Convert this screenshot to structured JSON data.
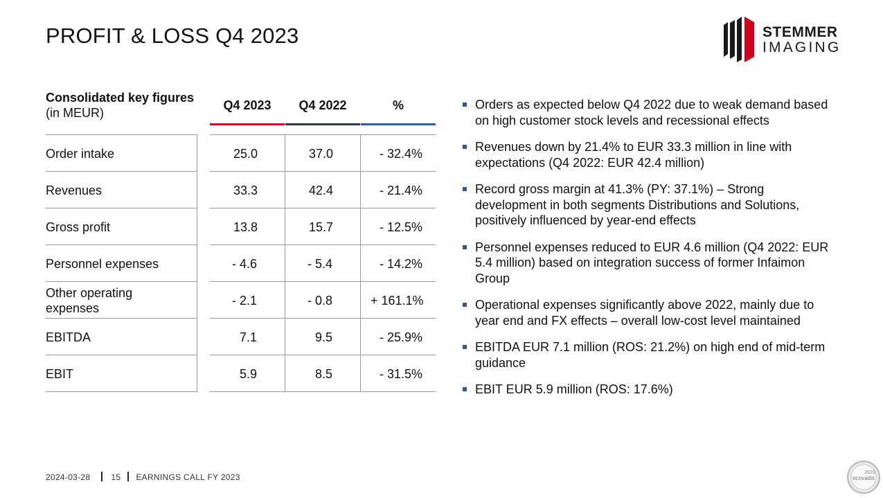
{
  "title": "PROFIT & LOSS Q4 2023",
  "logo": {
    "line1": "STEMMER",
    "line2": "IMAGING"
  },
  "table": {
    "header_title": "Consolidated key figures",
    "header_unit": "(in MEUR)",
    "columns": [
      "Q4 2023",
      "Q4 2022",
      "%"
    ],
    "rows": [
      {
        "label": "Order intake",
        "q4_2023": "25.0",
        "q4_2022": "37.0",
        "pct": "- 32.4%"
      },
      {
        "label": "Revenues",
        "q4_2023": "33.3",
        "q4_2022": "42.4",
        "pct": "- 21.4%"
      },
      {
        "label": "Gross profit",
        "q4_2023": "13.8",
        "q4_2022": "15.7",
        "pct": "- 12.5%"
      },
      {
        "label": "Personnel expenses",
        "q4_2023": "- 4.6",
        "q4_2022": "- 5.4",
        "pct": "- 14.2%"
      },
      {
        "label": "Other operating expenses",
        "q4_2023": "- 2.1",
        "q4_2022": "- 0.8",
        "pct": "+ 161.1%"
      },
      {
        "label": "EBITDA",
        "q4_2023": "7.1",
        "q4_2022": "9.5",
        "pct": "- 25.9%"
      },
      {
        "label": "EBIT",
        "q4_2023": "5.9",
        "q4_2022": "8.5",
        "pct": "- 31.5%"
      }
    ]
  },
  "bullets": [
    "Orders as expected below Q4 2022 due to weak demand based on high customer stock levels and recessional effects",
    "Revenues down by 21.4% to EUR 33.3 million in line with expectations (Q4 2022: EUR 42.4 million)",
    "Record gross margin at 41.3% (PY: 37.1%) – Strong development in both segments Distributions and Solutions, positively influenced by year-end effects",
    "Personnel expenses reduced to EUR 4.6 million (Q4 2022: EUR 5.4 million) based on integration success of former Infaimon Group",
    "Operational expenses significantly above 2022, mainly due to year end and FX effects – overall low-cost level maintained",
    "EBITDA EUR 7.1 million (ROS: 21.2%) on high end of mid-term guidance",
    "EBIT EUR 5.9 million (ROS: 17.6%)"
  ],
  "footer": {
    "date": "2024-03-28",
    "page": "15",
    "event": "EARNINGS CALL FY 2023"
  },
  "badge": {
    "year": "2023",
    "brand": "ecovadis"
  },
  "colors": {
    "q4_2023_underline": "#c8102e",
    "q4_2022_underline": "#2f3a3a",
    "pct_underline": "#3a5aa0",
    "bullet": "#3c5588",
    "logo_red": "#d0021b"
  }
}
